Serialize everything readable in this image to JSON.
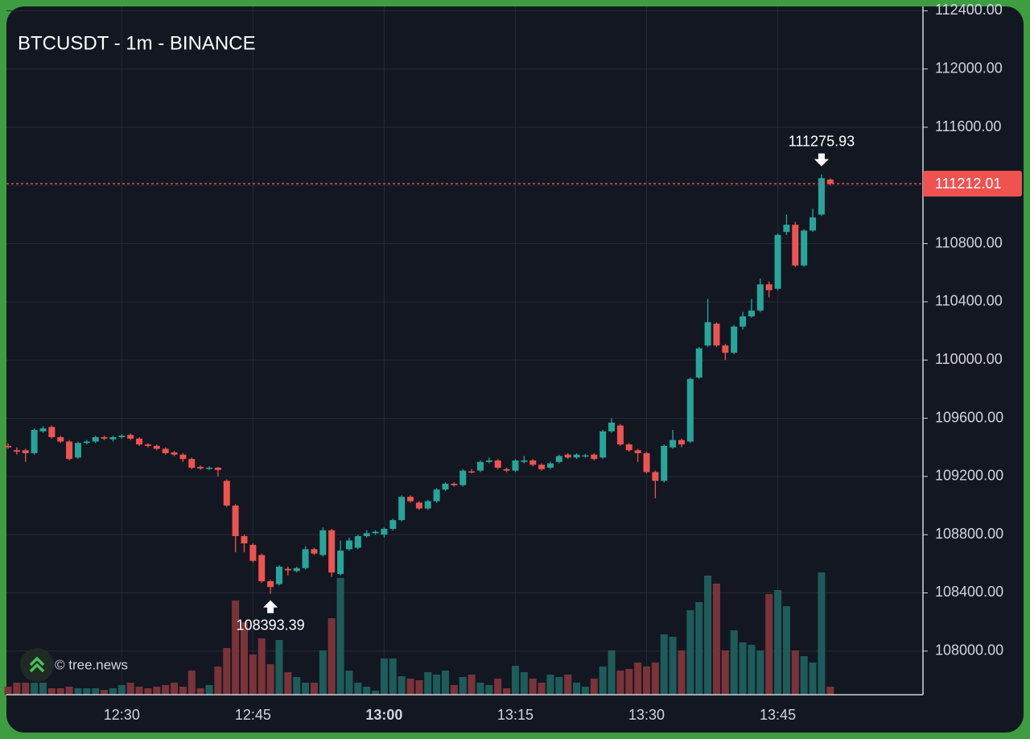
{
  "chart_data": {
    "type": "candlestick",
    "title": "BTCUSDT - 1m - BINANCE",
    "watermark": "© tree.news",
    "x": [
      "12:17",
      "12:18",
      "12:19",
      "12:20",
      "12:21",
      "12:22",
      "12:23",
      "12:24",
      "12:25",
      "12:26",
      "12:27",
      "12:28",
      "12:29",
      "12:30",
      "12:31",
      "12:32",
      "12:33",
      "12:34",
      "12:35",
      "12:36",
      "12:37",
      "12:38",
      "12:39",
      "12:40",
      "12:41",
      "12:42",
      "12:43",
      "12:44",
      "12:45",
      "12:46",
      "12:47",
      "12:48",
      "12:49",
      "12:50",
      "12:51",
      "12:52",
      "12:53",
      "12:54",
      "12:55",
      "12:56",
      "12:57",
      "12:58",
      "12:59",
      "13:00",
      "13:01",
      "13:02",
      "13:03",
      "13:04",
      "13:05",
      "13:06",
      "13:07",
      "13:08",
      "13:09",
      "13:10",
      "13:11",
      "13:12",
      "13:13",
      "13:14",
      "13:15",
      "13:16",
      "13:17",
      "13:18",
      "13:19",
      "13:20",
      "13:21",
      "13:22",
      "13:23",
      "13:24",
      "13:25",
      "13:26",
      "13:27",
      "13:28",
      "13:29",
      "13:30",
      "13:31",
      "13:32",
      "13:33",
      "13:34",
      "13:35",
      "13:36",
      "13:37",
      "13:38",
      "13:39",
      "13:40",
      "13:41",
      "13:42",
      "13:43",
      "13:44",
      "13:45",
      "13:46",
      "13:47",
      "13:48",
      "13:49",
      "13:50",
      "13:51"
    ],
    "open": [
      109410,
      109380,
      109380,
      109360,
      109510,
      109540,
      109470,
      109440,
      109330,
      109430,
      109440,
      109470,
      109455,
      109470,
      109485,
      109460,
      109420,
      109410,
      109390,
      109365,
      109350,
      109320,
      109265,
      109255,
      109260,
      109170,
      109000,
      108790,
      108730,
      108660,
      108480,
      108460,
      108565,
      108550,
      108570,
      108700,
      108660,
      108830,
      108530,
      108700,
      108710,
      108790,
      108810,
      108800,
      108840,
      108900,
      109060,
      109020,
      108980,
      109030,
      109110,
      109150,
      109140,
      109235,
      109240,
      109300,
      109310,
      109250,
      109240,
      109300,
      109310,
      109280,
      109260,
      109300,
      109350,
      109330,
      109340,
      109350,
      109330,
      109510,
      109550,
      109420,
      109380,
      109360,
      109230,
      109170,
      109400,
      109450,
      109440,
      109880,
      110100,
      110250,
      110100,
      110050,
      110230,
      110300,
      110340,
      110520,
      110490,
      110880,
      110930,
      110650,
      110890,
      111000,
      111240
    ],
    "high": [
      109430,
      109400,
      109390,
      109530,
      109545,
      109550,
      109480,
      109450,
      109440,
      109450,
      109480,
      109480,
      109480,
      109490,
      109495,
      109470,
      109430,
      109420,
      109400,
      109375,
      109360,
      109330,
      109275,
      109270,
      109265,
      109180,
      109010,
      108800,
      108740,
      108670,
      108490,
      108590,
      108580,
      108580,
      108720,
      108710,
      108850,
      108840,
      108760,
      108780,
      108800,
      108830,
      108830,
      108850,
      108910,
      109070,
      109070,
      109030,
      109040,
      109120,
      109160,
      109160,
      109250,
      109250,
      109310,
      109330,
      109320,
      109260,
      109320,
      109340,
      109320,
      109290,
      109300,
      109350,
      109360,
      109360,
      109355,
      109360,
      109520,
      109600,
      109560,
      109430,
      109390,
      109370,
      109240,
      109420,
      109520,
      109460,
      109880,
      110090,
      110420,
      110260,
      110110,
      110240,
      110330,
      110420,
      110560,
      110540,
      110870,
      111000,
      110950,
      110900,
      111040,
      111275.93,
      111250
    ],
    "low": [
      109390,
      109350,
      109300,
      109350,
      109500,
      109460,
      109430,
      109310,
      109320,
      109420,
      109430,
      109450,
      109440,
      109460,
      109450,
      109410,
      109400,
      109380,
      109350,
      109340,
      109300,
      109250,
      109245,
      109245,
      109200,
      108990,
      108680,
      108680,
      108610,
      108470,
      108393.39,
      108450,
      108520,
      108540,
      108560,
      108660,
      108650,
      108510,
      108520,
      108690,
      108700,
      108780,
      108800,
      108780,
      108830,
      108890,
      109020,
      108970,
      108970,
      109020,
      109100,
      109130,
      109130,
      109220,
      109230,
      109290,
      109250,
      109230,
      109230,
      109290,
      109270,
      109240,
      109250,
      109290,
      109320,
      109320,
      109330,
      109310,
      109320,
      109500,
      109410,
      109370,
      109300,
      109220,
      109050,
      109160,
      109390,
      109400,
      109430,
      109870,
      110090,
      110090,
      110000,
      110040,
      110210,
      110290,
      110330,
      110430,
      110480,
      110860,
      110640,
      110640,
      110880,
      110990,
      111200
    ],
    "close": [
      109400,
      109370,
      109360,
      109520,
      109530,
      109470,
      109440,
      109320,
      109430,
      109440,
      109470,
      109460,
      109470,
      109480,
      109460,
      109420,
      109410,
      109390,
      109360,
      109350,
      109320,
      109260,
      109255,
      109260,
      109245,
      109000,
      108790,
      108740,
      108620,
      108480,
      108440,
      108580,
      108555,
      108570,
      108700,
      108670,
      108830,
      108540,
      108690,
      108760,
      108790,
      108810,
      108820,
      108840,
      108900,
      109060,
      109030,
      108980,
      109030,
      109110,
      109150,
      109140,
      109240,
      109230,
      109300,
      109310,
      109260,
      109240,
      109310,
      109310,
      109280,
      109250,
      109290,
      109340,
      109330,
      109350,
      109345,
      109320,
      109510,
      109570,
      109420,
      109380,
      109360,
      109230,
      109170,
      109410,
      109450,
      109420,
      109870,
      110080,
      110260,
      110100,
      110050,
      110230,
      110300,
      110340,
      110520,
      110480,
      110860,
      110930,
      110650,
      110890,
      110980,
      111250,
      111212.01
    ],
    "volume": [
      10,
      15,
      15,
      15,
      15,
      8,
      8,
      10,
      8,
      8,
      8,
      6,
      8,
      12,
      15,
      10,
      8,
      10,
      12,
      15,
      10,
      30,
      8,
      12,
      35,
      58,
      117,
      90,
      50,
      70,
      38,
      68,
      28,
      22,
      15,
      15,
      55,
      95,
      145,
      30,
      15,
      10,
      5,
      45,
      45,
      23,
      20,
      18,
      28,
      25,
      30,
      12,
      22,
      25,
      15,
      12,
      20,
      8,
      36,
      28,
      20,
      15,
      25,
      22,
      25,
      15,
      10,
      20,
      35,
      55,
      30,
      32,
      40,
      35,
      40,
      75,
      72,
      55,
      105,
      115,
      148,
      138,
      55,
      80,
      65,
      62,
      55,
      125,
      130,
      110,
      55,
      48,
      40,
      152,
      10
    ],
    "up_color": "#26a69a",
    "down_color": "#ef5350",
    "volume_up_color": "#1d5c5a",
    "volume_down_color": "#7a3338",
    "ylim": [
      107700,
      112430
    ],
    "yticks": [
      {
        "value": 108000,
        "label": "108000.00"
      },
      {
        "value": 108400,
        "label": "108400.00"
      },
      {
        "value": 108800,
        "label": "108800.00"
      },
      {
        "value": 109200,
        "label": "109200.00"
      },
      {
        "value": 109600,
        "label": "109600.00"
      },
      {
        "value": 110000,
        "label": "110000.00"
      },
      {
        "value": 110400,
        "label": "110400.00"
      },
      {
        "value": 110800,
        "label": "110800.00"
      },
      {
        "value": 111200,
        "label": "111200.00"
      },
      {
        "value": 111600,
        "label": "111600.00"
      },
      {
        "value": 112000,
        "label": "112000.00"
      },
      {
        "value": 112400,
        "label": "112400.00"
      }
    ],
    "xticks": [
      "12:30",
      "12:45",
      "13:00",
      "13:15",
      "13:30",
      "13:45"
    ],
    "xtick_bold": [
      false,
      false,
      true,
      false,
      false,
      false
    ],
    "grid": true,
    "max_marker_index": 93,
    "min_marker_index": 30,
    "last_price_line": true
  }
}
